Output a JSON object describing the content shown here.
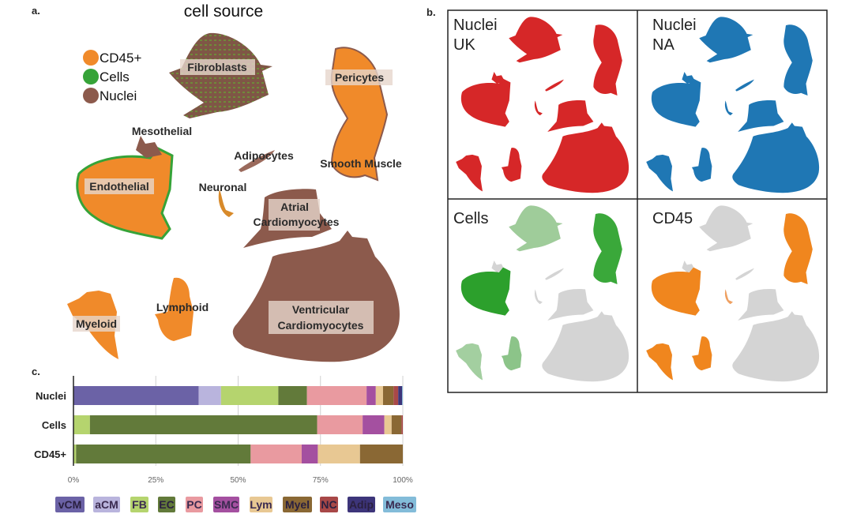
{
  "panel_a": {
    "label": "a.",
    "title": "cell source",
    "legend": [
      {
        "name": "CD45+",
        "color": "#f08a2a"
      },
      {
        "name": "Cells",
        "color": "#36a338"
      },
      {
        "name": "Nuclei",
        "color": "#8c5a4c"
      }
    ],
    "clusters": {
      "fibroblasts": "Fibroblasts",
      "pericytes": "Pericytes",
      "mesothelial": "Mesothelial",
      "adipocytes": "Adipocytes",
      "smooth_muscle": "Smooth Muscle",
      "endothelial": "Endothelial",
      "neuronal": "Neuronal",
      "atrial_1": "Atrial",
      "atrial_2": "Cardiomyocytes",
      "lymphoid": "Lymphoid",
      "myeloid": "Myeloid",
      "ventricular_1": "Ventricular",
      "ventricular_2": "Cardiomyocytes"
    }
  },
  "panel_b": {
    "label": "b.",
    "panels": [
      {
        "title_1": "Nuclei",
        "title_2": "UK",
        "color": "#d62728"
      },
      {
        "title_1": "Nuclei",
        "title_2": "NA",
        "color": "#1f77b4"
      },
      {
        "title_1": "Cells",
        "title_2": "",
        "color": "#2ca02c"
      },
      {
        "title_1": "CD45",
        "title_2": "",
        "color": "#f0861e"
      }
    ]
  },
  "watermark": "知乎 @联川生物",
  "chart_data": {
    "label": "c.",
    "type": "bar",
    "orientation": "horizontal",
    "stacked": true,
    "categories": [
      "Nuclei",
      "Cells",
      "CD45+"
    ],
    "xlim": [
      0,
      100
    ],
    "xticks": [
      "0%",
      "25%",
      "50%",
      "75%",
      "100%"
    ],
    "grid": true,
    "legend_position": "bottom",
    "series": [
      {
        "name": "vCM",
        "color": "#6b62a6",
        "values": [
          38.0,
          0,
          0
        ]
      },
      {
        "name": "aCM",
        "color": "#b9b4dd",
        "values": [
          6.8,
          0,
          0
        ]
      },
      {
        "name": "FB",
        "color": "#b5d46e",
        "values": [
          17.4,
          5.0,
          0.8
        ]
      },
      {
        "name": "EC",
        "color": "#627a3a",
        "values": [
          8.7,
          69.0,
          53.0
        ]
      },
      {
        "name": "PC",
        "color": "#e99aa0",
        "values": [
          18.1,
          13.8,
          15.5
        ]
      },
      {
        "name": "SMC",
        "color": "#a450a0",
        "values": [
          2.8,
          6.6,
          4.9
        ]
      },
      {
        "name": "Lym",
        "color": "#e8c893",
        "values": [
          2.2,
          2.2,
          12.8
        ]
      },
      {
        "name": "Myel",
        "color": "#8a6834",
        "values": [
          3.2,
          3.0,
          13.0
        ]
      },
      {
        "name": "NC",
        "color": "#a84848",
        "values": [
          1.4,
          0.4,
          0
        ]
      },
      {
        "name": "Adip",
        "color": "#3d357a",
        "values": [
          1.2,
          0,
          0
        ]
      },
      {
        "name": "Meso",
        "color": "#83bcd9",
        "values": [
          0.2,
          0,
          0
        ]
      }
    ]
  }
}
